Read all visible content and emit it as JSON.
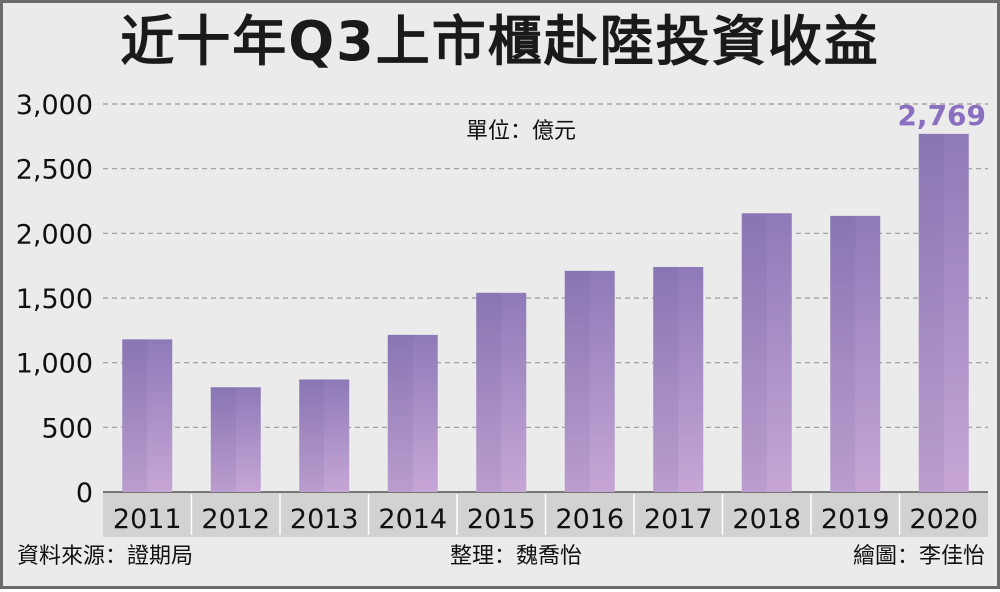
{
  "chart_data": {
    "type": "bar",
    "title": "近十年Q3上市櫃赴陸投資收益",
    "unit_label": "單位：億元",
    "categories": [
      "2011",
      "2012",
      "2013",
      "2014",
      "2015",
      "2016",
      "2017",
      "2018",
      "2019",
      "2020"
    ],
    "values": [
      1180,
      810,
      870,
      1215,
      1540,
      1710,
      1740,
      2155,
      2135,
      2769
    ],
    "value_labels": {
      "9": "2,769"
    },
    "ylim": [
      0,
      3000
    ],
    "yticks": [
      0,
      500,
      1000,
      1500,
      2000,
      2500,
      3000
    ],
    "ytick_labels": [
      "0",
      "500",
      "1,000",
      "1,500",
      "2,000",
      "2,500",
      "3,000"
    ],
    "grid": true,
    "xlabel": "",
    "ylabel": "",
    "colors": {
      "bar_top": "#8e7ab8",
      "bar_bottom": "#c7a6d6",
      "highlight_label": "#8a6ec0",
      "axis_band": "#d2d2d2",
      "background": "#ebebeb",
      "gridline": "#999999"
    }
  },
  "footer": {
    "source": "資料來源：證期局",
    "compiler": "整理：魏喬怡",
    "illustrator": "繪圖：李佳怡"
  }
}
